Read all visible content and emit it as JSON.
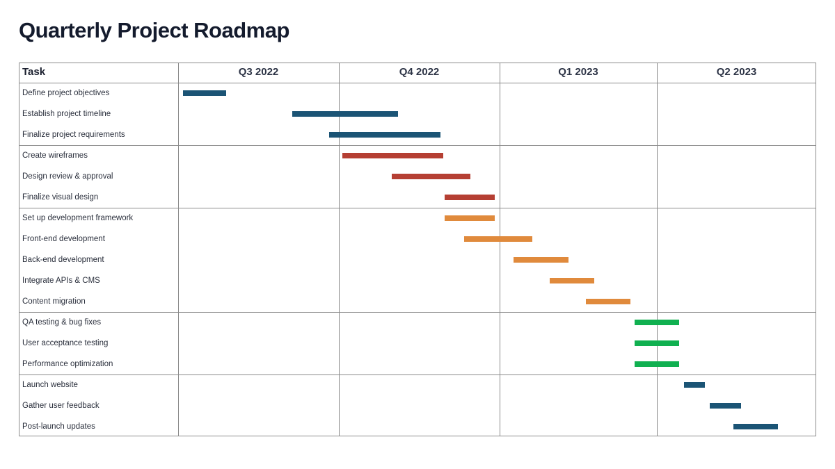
{
  "title": "Quarterly Project Roadmap",
  "header": {
    "task_label": "Task"
  },
  "colors": {
    "blue": "#1b5475",
    "red": "#b53f33",
    "orange": "#e08a3c",
    "green": "#10b050"
  },
  "chart_data": {
    "type": "gantt",
    "title": "Quarterly Project Roadmap",
    "quarters": [
      "Q3 2022",
      "Q4 2022",
      "Q1 2023",
      "Q2 2023"
    ],
    "x_range": [
      0,
      4
    ],
    "x_unit": "quarters from start of Q3 2022",
    "groups": [
      {
        "color": "#1b5475",
        "tasks": [
          {
            "name": "Define project objectives",
            "start": 0.03,
            "end": 0.3
          },
          {
            "name": "Establish project timeline",
            "start": 0.71,
            "end": 1.37
          },
          {
            "name": "Finalize project requirements",
            "start": 0.94,
            "end": 1.63
          }
        ]
      },
      {
        "color": "#b53f33",
        "tasks": [
          {
            "name": "Create wireframes",
            "start": 1.02,
            "end": 1.65
          },
          {
            "name": "Design review & approval",
            "start": 1.33,
            "end": 1.82
          },
          {
            "name": "Finalize visual design",
            "start": 1.66,
            "end": 1.97
          }
        ]
      },
      {
        "color": "#e08a3c",
        "tasks": [
          {
            "name": "Set up development framework",
            "start": 1.66,
            "end": 1.97
          },
          {
            "name": "Front-end development",
            "start": 1.78,
            "end": 2.21
          },
          {
            "name": "Back-end development",
            "start": 2.09,
            "end": 2.44
          },
          {
            "name": "Integrate APIs & CMS",
            "start": 2.32,
            "end": 2.6
          },
          {
            "name": "Content migration",
            "start": 2.55,
            "end": 2.83
          }
        ]
      },
      {
        "color": "#10b050",
        "tasks": [
          {
            "name": "QA testing & bug fixes",
            "start": 2.86,
            "end": 3.14
          },
          {
            "name": "User acceptance testing",
            "start": 2.86,
            "end": 3.14
          },
          {
            "name": "Performance optimization",
            "start": 2.86,
            "end": 3.14
          }
        ]
      },
      {
        "color": "#1b5475",
        "tasks": [
          {
            "name": "Launch website",
            "start": 3.17,
            "end": 3.3
          },
          {
            "name": "Gather user feedback",
            "start": 3.33,
            "end": 3.53
          },
          {
            "name": "Post-launch updates",
            "start": 3.48,
            "end": 3.76
          }
        ]
      }
    ]
  }
}
